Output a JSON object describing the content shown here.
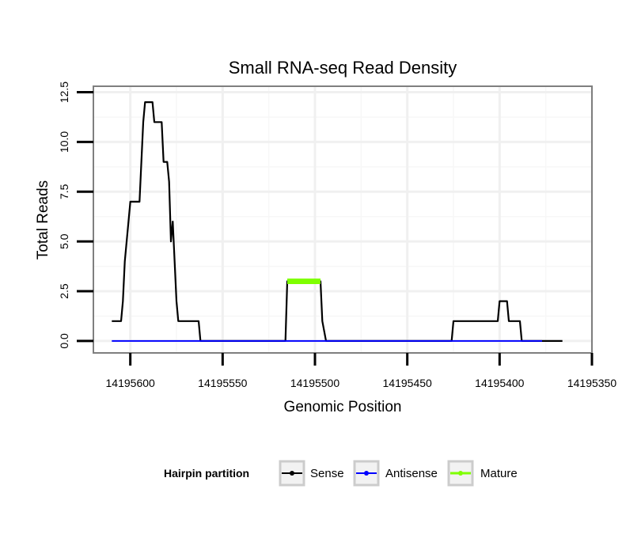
{
  "chart_data": {
    "type": "line",
    "title": "Small RNA-seq Read Density",
    "xlabel": "Genomic Position",
    "ylabel": "Total Reads",
    "x_reversed": true,
    "xlim": [
      14195620,
      14195350
    ],
    "ylim": [
      -0.6,
      12.8
    ],
    "xticks": [
      14195600,
      14195550,
      14195500,
      14195450,
      14195400,
      14195350
    ],
    "xtick_labels": [
      "14195600",
      "14195550",
      "14195500",
      "14195450",
      "14195400",
      "14195350"
    ],
    "yticks": [
      0,
      2.5,
      5,
      7.5,
      10,
      12.5
    ],
    "ytick_labels": [
      "0.0",
      "2.5",
      "5.0",
      "7.5",
      "10.0",
      "12.5"
    ],
    "grid": true,
    "legend": {
      "title": "Hairpin partition",
      "position": "bottom"
    },
    "series": [
      {
        "name": "Sense",
        "color": "#000000",
        "x": [
          14195610,
          14195605,
          14195604,
          14195603,
          14195600,
          14195595,
          14195593,
          14195592,
          14195588,
          14195587,
          14195583,
          14195582,
          14195580,
          14195579,
          14195578,
          14195577,
          14195575,
          14195574,
          14195563,
          14195562,
          14195516,
          14195515,
          14195497,
          14195496,
          14195494,
          14195426,
          14195425,
          14195401,
          14195400,
          14195396,
          14195395,
          14195389,
          14195388,
          14195378,
          14195377,
          14195366
        ],
        "y": [
          1,
          1,
          2,
          4,
          7,
          7,
          11,
          12,
          12,
          11,
          11,
          9,
          9,
          8,
          5,
          6,
          2,
          1,
          1,
          0,
          0,
          3,
          3,
          1,
          0,
          0,
          1,
          1,
          2,
          2,
          1,
          1,
          0,
          0,
          0,
          0
        ]
      },
      {
        "name": "Antisense",
        "color": "#0000ff",
        "x": [
          14195610,
          14195377
        ],
        "y": [
          0,
          0
        ]
      },
      {
        "name": "Mature",
        "color": "#7fff00",
        "x": [
          14195515,
          14195497
        ],
        "y": [
          3,
          3
        ]
      }
    ]
  }
}
